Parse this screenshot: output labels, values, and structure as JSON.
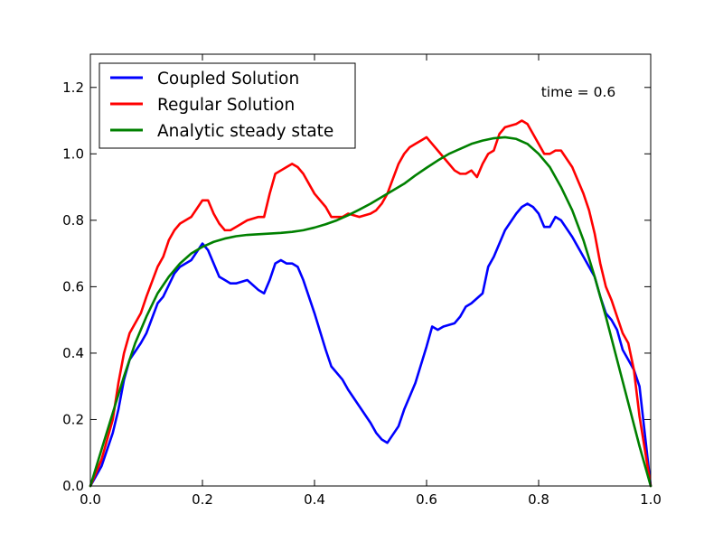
{
  "chart_data": {
    "type": "line",
    "title": "",
    "xlabel": "",
    "ylabel": "",
    "xlim": [
      0.0,
      1.0
    ],
    "ylim": [
      0.0,
      1.3
    ],
    "xticks": [
      0.0,
      0.2,
      0.4,
      0.6,
      0.8,
      1.0
    ],
    "xtick_labels": [
      "0.0",
      "0.2",
      "0.4",
      "0.6",
      "0.8",
      "1.0"
    ],
    "yticks": [
      0.0,
      0.2,
      0.4,
      0.6,
      0.8,
      1.0,
      1.2
    ],
    "ytick_labels": [
      "0.0",
      "0.2",
      "0.4",
      "0.6",
      "0.8",
      "1.0",
      "1.2"
    ],
    "grid": false,
    "legend_position": "upper-left",
    "annotation": "time = 0.6",
    "series": [
      {
        "name": "Coupled Solution",
        "color": "#0000ff",
        "x": [
          0.0,
          0.02,
          0.04,
          0.05,
          0.06,
          0.07,
          0.09,
          0.1,
          0.12,
          0.13,
          0.15,
          0.16,
          0.18,
          0.2,
          0.21,
          0.23,
          0.24,
          0.25,
          0.26,
          0.28,
          0.3,
          0.31,
          0.32,
          0.33,
          0.34,
          0.35,
          0.36,
          0.37,
          0.38,
          0.4,
          0.42,
          0.43,
          0.45,
          0.46,
          0.48,
          0.5,
          0.51,
          0.52,
          0.53,
          0.55,
          0.56,
          0.57,
          0.58,
          0.6,
          0.61,
          0.62,
          0.63,
          0.65,
          0.66,
          0.67,
          0.68,
          0.7,
          0.71,
          0.72,
          0.74,
          0.76,
          0.77,
          0.78,
          0.79,
          0.8,
          0.81,
          0.82,
          0.83,
          0.84,
          0.86,
          0.88,
          0.89,
          0.9,
          0.91,
          0.92,
          0.93,
          0.94,
          0.95,
          0.96,
          0.97,
          0.98,
          1.0
        ],
        "y": [
          0.0,
          0.06,
          0.16,
          0.23,
          0.32,
          0.38,
          0.43,
          0.46,
          0.55,
          0.57,
          0.64,
          0.66,
          0.68,
          0.73,
          0.71,
          0.63,
          0.62,
          0.61,
          0.61,
          0.62,
          0.59,
          0.58,
          0.62,
          0.67,
          0.68,
          0.67,
          0.67,
          0.66,
          0.62,
          0.52,
          0.41,
          0.36,
          0.32,
          0.29,
          0.24,
          0.19,
          0.16,
          0.14,
          0.13,
          0.18,
          0.23,
          0.27,
          0.31,
          0.42,
          0.48,
          0.47,
          0.48,
          0.49,
          0.51,
          0.54,
          0.55,
          0.58,
          0.66,
          0.69,
          0.77,
          0.82,
          0.84,
          0.85,
          0.84,
          0.82,
          0.78,
          0.78,
          0.81,
          0.8,
          0.75,
          0.69,
          0.66,
          0.63,
          0.57,
          0.52,
          0.5,
          0.47,
          0.41,
          0.38,
          0.35,
          0.3,
          0.0
        ]
      },
      {
        "name": "Regular Solution",
        "color": "#ff0000",
        "x": [
          0.0,
          0.02,
          0.04,
          0.05,
          0.06,
          0.07,
          0.09,
          0.1,
          0.12,
          0.13,
          0.14,
          0.15,
          0.16,
          0.18,
          0.2,
          0.21,
          0.22,
          0.23,
          0.24,
          0.25,
          0.26,
          0.28,
          0.3,
          0.31,
          0.32,
          0.33,
          0.34,
          0.35,
          0.36,
          0.37,
          0.38,
          0.4,
          0.42,
          0.43,
          0.45,
          0.46,
          0.48,
          0.5,
          0.51,
          0.52,
          0.53,
          0.55,
          0.56,
          0.57,
          0.58,
          0.59,
          0.6,
          0.61,
          0.62,
          0.63,
          0.65,
          0.66,
          0.67,
          0.68,
          0.69,
          0.7,
          0.71,
          0.72,
          0.73,
          0.74,
          0.76,
          0.77,
          0.78,
          0.79,
          0.8,
          0.81,
          0.82,
          0.83,
          0.84,
          0.86,
          0.88,
          0.89,
          0.9,
          0.91,
          0.92,
          0.93,
          0.94,
          0.95,
          0.96,
          0.97,
          0.98,
          1.0
        ],
        "y": [
          0.0,
          0.08,
          0.2,
          0.31,
          0.4,
          0.46,
          0.52,
          0.57,
          0.66,
          0.69,
          0.74,
          0.77,
          0.79,
          0.81,
          0.86,
          0.86,
          0.82,
          0.79,
          0.77,
          0.77,
          0.78,
          0.8,
          0.81,
          0.81,
          0.88,
          0.94,
          0.95,
          0.96,
          0.97,
          0.96,
          0.94,
          0.88,
          0.84,
          0.81,
          0.81,
          0.82,
          0.81,
          0.82,
          0.83,
          0.85,
          0.88,
          0.97,
          1.0,
          1.02,
          1.03,
          1.04,
          1.05,
          1.03,
          1.01,
          0.99,
          0.95,
          0.94,
          0.94,
          0.95,
          0.93,
          0.97,
          1.0,
          1.01,
          1.06,
          1.08,
          1.09,
          1.1,
          1.09,
          1.06,
          1.03,
          1.0,
          1.0,
          1.01,
          1.01,
          0.96,
          0.88,
          0.83,
          0.76,
          0.67,
          0.6,
          0.56,
          0.51,
          0.46,
          0.43,
          0.35,
          0.21,
          0.0
        ]
      },
      {
        "name": "Analytic steady state",
        "color": "#008000",
        "points": [
          [
            0.0,
            0.0
          ],
          [
            0.02,
            0.11
          ],
          [
            0.04,
            0.22
          ],
          [
            0.06,
            0.33
          ],
          [
            0.08,
            0.43
          ],
          [
            0.1,
            0.51
          ],
          [
            0.12,
            0.58
          ],
          [
            0.14,
            0.63
          ],
          [
            0.16,
            0.67
          ],
          [
            0.18,
            0.7
          ],
          [
            0.2,
            0.72
          ],
          [
            0.22,
            0.735
          ],
          [
            0.24,
            0.745
          ],
          [
            0.26,
            0.752
          ],
          [
            0.28,
            0.756
          ],
          [
            0.3,
            0.758
          ],
          [
            0.32,
            0.76
          ],
          [
            0.34,
            0.762
          ],
          [
            0.36,
            0.765
          ],
          [
            0.38,
            0.77
          ],
          [
            0.4,
            0.778
          ],
          [
            0.42,
            0.788
          ],
          [
            0.44,
            0.8
          ],
          [
            0.46,
            0.815
          ],
          [
            0.48,
            0.832
          ],
          [
            0.5,
            0.85
          ],
          [
            0.52,
            0.87
          ],
          [
            0.54,
            0.89
          ],
          [
            0.56,
            0.91
          ],
          [
            0.58,
            0.935
          ],
          [
            0.6,
            0.958
          ],
          [
            0.62,
            0.98
          ],
          [
            0.64,
            1.0
          ],
          [
            0.66,
            1.015
          ],
          [
            0.68,
            1.03
          ],
          [
            0.7,
            1.04
          ],
          [
            0.72,
            1.047
          ],
          [
            0.74,
            1.05
          ],
          [
            0.76,
            1.045
          ],
          [
            0.78,
            1.03
          ],
          [
            0.8,
            1.0
          ],
          [
            0.82,
            0.96
          ],
          [
            0.84,
            0.9
          ],
          [
            0.86,
            0.83
          ],
          [
            0.88,
            0.74
          ],
          [
            0.9,
            0.63
          ],
          [
            0.92,
            0.51
          ],
          [
            0.94,
            0.38
          ],
          [
            0.96,
            0.25
          ],
          [
            0.98,
            0.12
          ],
          [
            1.0,
            0.0
          ]
        ]
      }
    ]
  }
}
